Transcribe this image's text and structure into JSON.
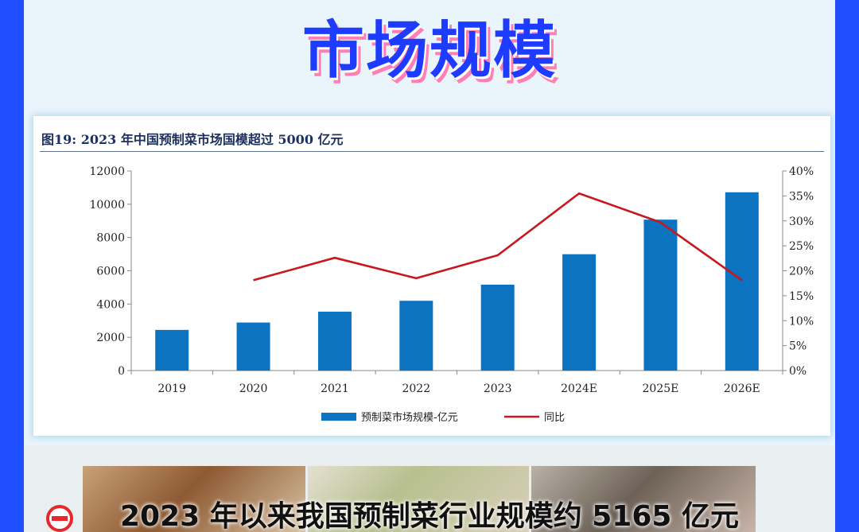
{
  "banner": {
    "title": "市场规模"
  },
  "chart_card": {
    "title": "图19:  2023 年中国预制菜市场国模超过 5000 亿元"
  },
  "chart_data": {
    "type": "bar",
    "title": "图19:  2023 年中国预制菜市场国模超过 5000 亿元",
    "categories": [
      "2019",
      "2020",
      "2021",
      "2022",
      "2023",
      "2024E",
      "2025E",
      "2026E"
    ],
    "series": [
      {
        "name": "预制菜市场规模-亿元",
        "type": "bar",
        "axis": "left",
        "color": "#0b73bf",
        "values": [
          2445,
          2888,
          3542,
          4196,
          5165,
          6996,
          9075,
          10720
        ]
      },
      {
        "name": "同比",
        "type": "line",
        "axis": "right",
        "color": "#c8171e",
        "values": [
          null,
          18.1,
          22.6,
          18.5,
          23.1,
          35.5,
          29.7,
          18.1
        ]
      }
    ],
    "y_left": {
      "min": 0,
      "max": 12000,
      "ticks": [
        "0",
        "2000",
        "4000",
        "6000",
        "8000",
        "10000",
        "12000"
      ]
    },
    "y_right": {
      "min": 0,
      "max": 40,
      "ticks": [
        "0%",
        "5%",
        "10%",
        "15%",
        "20%",
        "25%",
        "30%",
        "35%",
        "40%"
      ]
    },
    "legend_position": "bottom",
    "grid": false
  },
  "bottom": {
    "caption": "2023 年以来我国预制菜行业规模约 5165 亿元",
    "icon": "no-entry-icon"
  }
}
